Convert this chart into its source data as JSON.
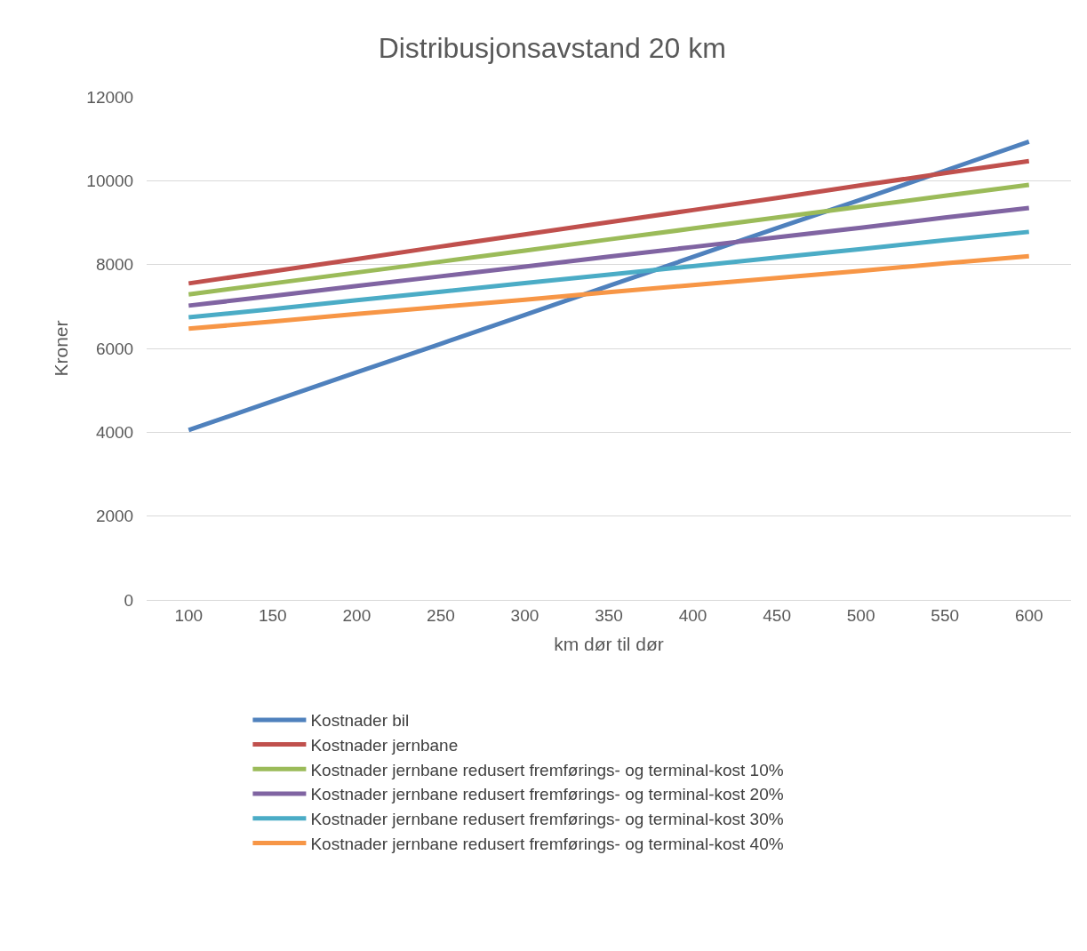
{
  "chart_data": {
    "type": "line",
    "title": "Distribusjonsavstand 20 km",
    "xlabel": "km dør til dør",
    "ylabel": "Kroner",
    "categories": [
      "100",
      "150",
      "200",
      "250",
      "300",
      "350",
      "400",
      "450",
      "500",
      "550",
      "600"
    ],
    "series": [
      {
        "name": "Kostnader bil",
        "color": "#4f81bd",
        "values": [
          4050,
          4740,
          5430,
          6110,
          6800,
          7490,
          8180,
          8870,
          9550,
          10240,
          10930
        ]
      },
      {
        "name": "Kostnader jernbane",
        "color": "#c0504d",
        "values": [
          7550,
          7840,
          8130,
          8430,
          8720,
          9010,
          9300,
          9590,
          9890,
          10180,
          10470
        ]
      },
      {
        "name": "Kostnader jernbane redusert fremførings- og terminal-kost 10%",
        "color": "#9bbb59",
        "values": [
          7290,
          7550,
          7810,
          8070,
          8330,
          8600,
          8860,
          9120,
          9380,
          9640,
          9900
        ]
      },
      {
        "name": "Kostnader jernbane redusert fremførings- og terminal-kost 20%",
        "color": "#8064a2",
        "values": [
          7020,
          7250,
          7490,
          7720,
          7950,
          8190,
          8420,
          8650,
          8880,
          9120,
          9350
        ]
      },
      {
        "name": "Kostnader jernbane redusert fremførings- og terminal-kost 30%",
        "color": "#4bacc6",
        "values": [
          6740,
          6940,
          7150,
          7350,
          7560,
          7760,
          7960,
          8170,
          8370,
          8580,
          8780
        ]
      },
      {
        "name": "Kostnader jernbane redusert fremførings- og terminal-kost 40%",
        "color": "#f79646",
        "values": [
          6470,
          6640,
          6820,
          6990,
          7160,
          7340,
          7510,
          7680,
          7850,
          8030,
          8200
        ]
      }
    ],
    "ylim": [
      0,
      12000
    ],
    "yticks": [
      0,
      2000,
      4000,
      6000,
      8000,
      10000,
      12000
    ],
    "grid": "y",
    "legend": "bottom",
    "marker": "none",
    "line_style": "solid"
  }
}
